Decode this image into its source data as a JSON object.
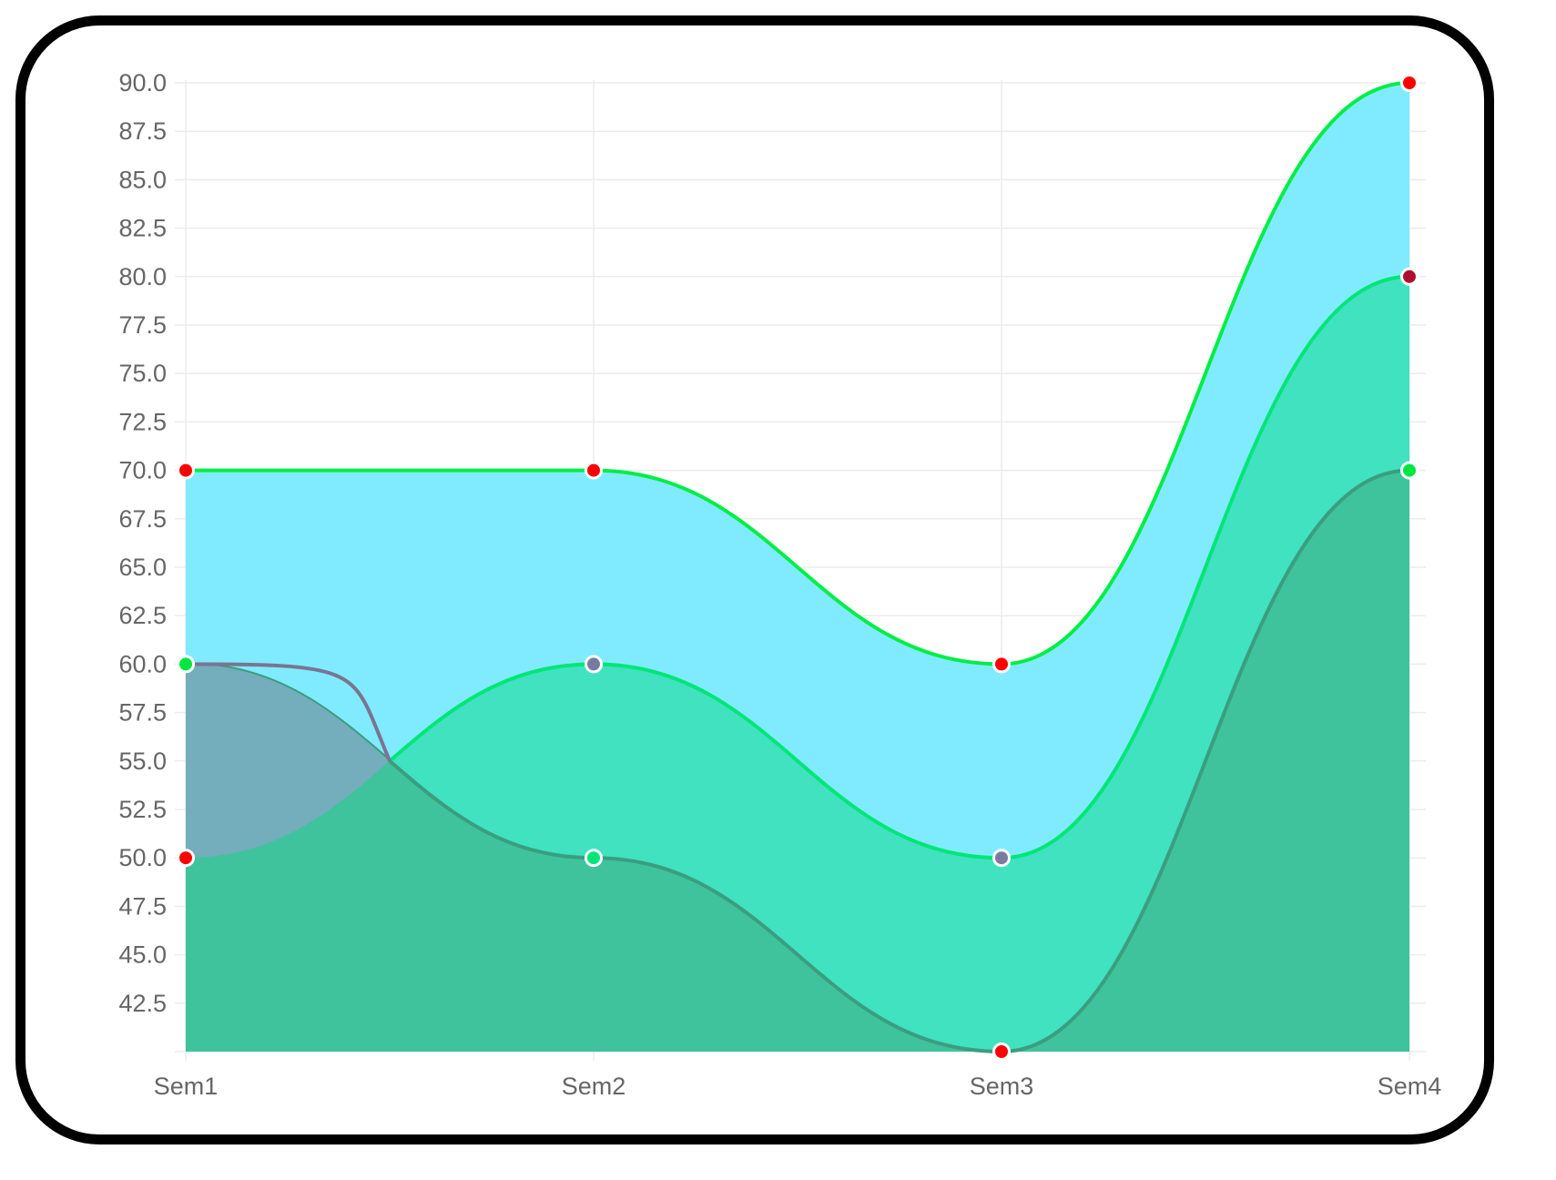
{
  "chart_data": {
    "type": "area",
    "categories": [
      "Sem1",
      "Sem2",
      "Sem3",
      "Sem4"
    ],
    "series": [
      {
        "values": [
          60,
          50,
          40,
          70
        ],
        "fill": "#3fc39c",
        "line": "#3a9e7f",
        "point_colors": [
          "#00e640",
          "#00e676",
          "#ff0000",
          "#00e640"
        ]
      },
      {
        "values": [
          50,
          60,
          50,
          80
        ],
        "fill": "#40e2c0",
        "line": "#00e676",
        "point_colors": [
          "#ff0000",
          "#7a7aa0",
          "#7a7aa0",
          "#b01030"
        ]
      },
      {
        "values": [
          70,
          70,
          60,
          90
        ],
        "fill": "#80ebff",
        "line": "#00ee44",
        "point_colors": [
          "#ff0000",
          "#ff0000",
          "#ff0000",
          "#ff0000"
        ]
      }
    ],
    "first_segment_overlay_fill": "#74adbc",
    "first_segment_overlay_line": "#7a7492",
    "y_ticks": [
      "90.0",
      "87.5",
      "85.0",
      "82.5",
      "80.0",
      "77.5",
      "75.0",
      "72.5",
      "70.0",
      "67.5",
      "65.0",
      "62.5",
      "60.0",
      "57.5",
      "55.0",
      "52.5",
      "50.0",
      "47.5",
      "45.0",
      "42.5"
    ],
    "ylim": [
      40,
      90
    ],
    "grid": true,
    "gridline_color": "#ececec",
    "tick_label_color": "#666666"
  }
}
